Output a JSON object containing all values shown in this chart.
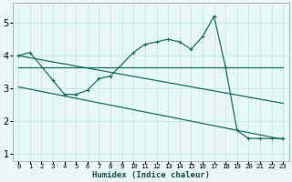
{
  "xlabel": "Humidex (Indice chaleur)",
  "bg_color": "#e8f8f8",
  "grid_color": "#c8e8e8",
  "line_color": "#1a7060",
  "xlim": [
    -0.5,
    23.5
  ],
  "ylim": [
    0.8,
    5.6
  ],
  "xticks": [
    0,
    1,
    2,
    3,
    4,
    5,
    6,
    7,
    8,
    9,
    10,
    11,
    12,
    13,
    14,
    15,
    16,
    17,
    18,
    19,
    20,
    21,
    22,
    23
  ],
  "yticks": [
    1,
    2,
    3,
    4,
    5
  ],
  "series0_x": [
    0,
    1,
    3,
    4,
    5,
    6,
    7,
    8,
    10,
    11,
    12,
    13,
    14,
    15,
    16,
    17,
    18,
    19,
    20,
    21,
    22,
    23
  ],
  "series0_y": [
    4.0,
    4.1,
    3.25,
    2.82,
    2.82,
    2.95,
    3.3,
    3.38,
    4.1,
    4.35,
    4.42,
    4.5,
    4.42,
    4.2,
    4.58,
    5.2,
    3.65,
    1.72,
    1.48,
    1.48,
    1.48,
    1.48
  ],
  "line1_x": [
    0,
    23
  ],
  "line1_y": [
    3.65,
    3.65
  ],
  "line2_x": [
    0,
    23
  ],
  "line2_y": [
    4.0,
    2.55
  ],
  "line3_x": [
    0,
    23
  ],
  "line3_y": [
    3.05,
    1.45
  ]
}
